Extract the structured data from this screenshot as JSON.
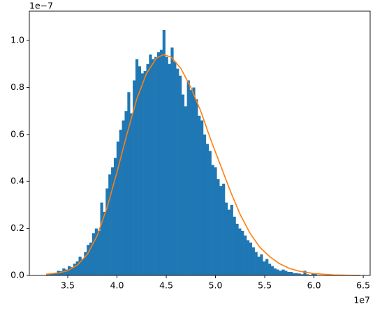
{
  "chart_data": {
    "type": "histogram",
    "color": "#1f77b4",
    "bins": [
      3.28,
      3.3075,
      3.335,
      3.3625,
      3.39,
      3.4175,
      3.445,
      3.4725,
      3.5,
      3.5275,
      3.555,
      3.5825,
      3.61,
      3.6375,
      3.665,
      3.6925,
      3.72,
      3.7475,
      3.775,
      3.8025,
      3.83,
      3.8575,
      3.885,
      3.9125,
      3.94,
      3.9675,
      3.995,
      4.0225,
      4.05,
      4.0775,
      4.105,
      4.1325,
      4.16,
      4.1875,
      4.215,
      4.2425,
      4.27,
      4.2975,
      4.325,
      4.3525,
      4.38,
      4.4075,
      4.435,
      4.4625,
      4.49,
      4.5175,
      4.545,
      4.5725,
      4.6,
      4.6275,
      4.655,
      4.6825,
      4.71,
      4.7375,
      4.765,
      4.7925,
      4.82,
      4.8475,
      4.875,
      4.9025,
      4.93,
      4.9575,
      4.985,
      5.0125,
      5.04,
      5.0675,
      5.095,
      5.1225,
      5.15,
      5.1775,
      5.205,
      5.2325,
      5.26,
      5.2875,
      5.315,
      5.3425,
      5.37,
      5.3975,
      5.425,
      5.4525,
      5.48,
      5.5075,
      5.535,
      5.5625,
      5.59,
      5.6175,
      5.645,
      5.6725,
      5.7,
      5.7275,
      5.755,
      5.7825,
      5.81,
      5.8375,
      5.865,
      5.8925,
      5.92,
      5.9475,
      5.975,
      6.0025,
      6.03
    ],
    "values": [
      0.005,
      0.008,
      0.01,
      0.012,
      0.02,
      0.018,
      0.03,
      0.025,
      0.04,
      0.035,
      0.05,
      0.06,
      0.08,
      0.07,
      0.1,
      0.13,
      0.14,
      0.18,
      0.2,
      0.19,
      0.31,
      0.27,
      0.37,
      0.43,
      0.46,
      0.5,
      0.57,
      0.62,
      0.66,
      0.7,
      0.78,
      0.69,
      0.83,
      0.92,
      0.89,
      0.86,
      0.87,
      0.9,
      0.94,
      0.92,
      0.93,
      0.95,
      0.96,
      1.045,
      0.93,
      0.9,
      0.97,
      0.91,
      0.88,
      0.85,
      0.77,
      0.72,
      0.83,
      0.79,
      0.8,
      0.75,
      0.68,
      0.66,
      0.6,
      0.56,
      0.53,
      0.47,
      0.46,
      0.41,
      0.38,
      0.39,
      0.31,
      0.28,
      0.3,
      0.25,
      0.22,
      0.2,
      0.19,
      0.17,
      0.15,
      0.14,
      0.12,
      0.1,
      0.08,
      0.09,
      0.06,
      0.07,
      0.05,
      0.04,
      0.03,
      0.025,
      0.02,
      0.025,
      0.02,
      0.015,
      0.015,
      0.01,
      0.01,
      0.008,
      0.005,
      0.02,
      0.005,
      0.003,
      0.008,
      0.006
    ],
    "overlay": {
      "type": "line",
      "color": "#ff7f0e",
      "x": [
        3.28,
        3.4,
        3.5,
        3.6,
        3.7,
        3.8,
        3.9,
        4.0,
        4.1,
        4.2,
        4.3,
        4.4,
        4.47,
        4.55,
        4.65,
        4.75,
        4.85,
        4.95,
        5.05,
        5.15,
        5.25,
        5.35,
        5.45,
        5.55,
        5.65,
        5.75,
        5.85,
        6.0,
        6.2,
        6.47
      ],
      "values": [
        0.005,
        0.01,
        0.02,
        0.045,
        0.09,
        0.17,
        0.29,
        0.44,
        0.6,
        0.75,
        0.86,
        0.925,
        0.94,
        0.93,
        0.88,
        0.8,
        0.7,
        0.58,
        0.47,
        0.36,
        0.26,
        0.18,
        0.12,
        0.08,
        0.05,
        0.03,
        0.018,
        0.008,
        0.002,
        0
      ]
    },
    "xlim": [
      3.11,
      6.57
    ],
    "ylim": [
      0,
      1.125
    ],
    "xticks": [
      3.5,
      {
        "value": 4,
        "label": "4.0"
      },
      4.5,
      {
        "value": 5,
        "label": "5.0"
      },
      5.5,
      {
        "value": 6,
        "label": "6.0"
      },
      6.5
    ],
    "yticks": [
      {
        "value": 0,
        "label": "0.0"
      },
      0.2,
      0.4,
      0.6,
      0.8,
      {
        "value": 1,
        "label": "1.0"
      }
    ],
    "x_offset_label": "1e7",
    "y_offset_label": "1e−7"
  }
}
